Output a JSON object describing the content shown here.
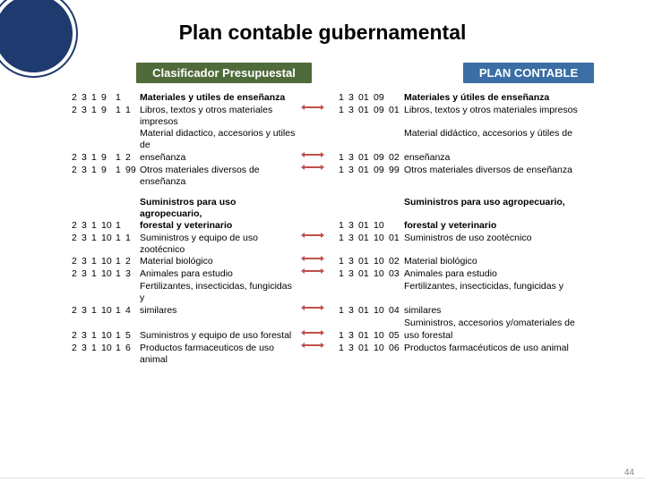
{
  "title": "Plan contable gubernamental",
  "banners": {
    "left": {
      "label": "Clasificador Presupuestal",
      "bg": "#4f6b3a"
    },
    "right": {
      "label": "PLAN CONTABLE",
      "bg": "#3a6ea5"
    }
  },
  "groups": [
    {
      "rows": [
        {
          "cl": [
            "2",
            "3",
            "1",
            "9",
            "1",
            "",
            ""
          ],
          "dl": "Materiales y utiles de enseñanza",
          "dlBold": true,
          "arrow": false,
          "cr": [
            "1",
            "3",
            "01",
            "09",
            "",
            ""
          ],
          "dr": "Materiales y útiles de enseñanza",
          "drBold": true
        },
        {
          "cl": [
            "2",
            "3",
            "1",
            "9",
            "1",
            "1",
            ""
          ],
          "dl": "Libros, textos y otros materiales impresos",
          "arrow": true,
          "cr": [
            "1",
            "3",
            "01",
            "09",
            "01",
            ""
          ],
          "dr": "Libros, textos y otros materiales impresos"
        },
        {
          "cl": [
            "",
            "",
            "",
            "",
            "",
            "",
            ""
          ],
          "dl": "Material didactico, accesorios y utiles de",
          "arrow": false,
          "cr": [
            "",
            "",
            "",
            "",
            "",
            ""
          ],
          "dr": "Material didáctico, accesorios y útiles de"
        },
        {
          "cl": [
            "2",
            "3",
            "1",
            "9",
            "1",
            "2",
            ""
          ],
          "dl": "enseñanza",
          "arrow": true,
          "cr": [
            "1",
            "3",
            "01",
            "09",
            "02",
            ""
          ],
          "dr": "enseñanza"
        },
        {
          "cl": [
            "2",
            "3",
            "1",
            "9",
            "1",
            "99",
            ""
          ],
          "dl": "Otros materiales diversos de enseñanza",
          "arrow": true,
          "cr": [
            "1",
            "3",
            "01",
            "09",
            "99",
            ""
          ],
          "dr": "Otros materiales diversos de enseñanza"
        }
      ]
    },
    {
      "rows": [
        {
          "cl": [
            "",
            "",
            "",
            "",
            "",
            "",
            ""
          ],
          "dl": "Suministros para uso agropecuario,",
          "dlBold": true,
          "arrow": false,
          "cr": [
            "",
            "",
            "",
            "",
            "",
            ""
          ],
          "dr": "Suministros para uso agropecuario,",
          "drBold": true
        },
        {
          "cl": [
            "2",
            "3",
            "1",
            "10",
            "1",
            "",
            ""
          ],
          "dl": "forestal y veterinario",
          "dlBold": true,
          "arrow": false,
          "cr": [
            "1",
            "3",
            "01",
            "10",
            "",
            ""
          ],
          "dr": "forestal y veterinario",
          "drBold": true
        },
        {
          "cl": [
            "2",
            "3",
            "1",
            "10",
            "1",
            "1",
            ""
          ],
          "dl": "Suministros y equipo de uso zootécnico",
          "arrow": true,
          "cr": [
            "1",
            "3",
            "01",
            "10",
            "01",
            ""
          ],
          "dr": "Suministros de uso zootécnico"
        },
        {
          "cl": [
            "2",
            "3",
            "1",
            "10",
            "1",
            "2",
            ""
          ],
          "dl": "Material biológico",
          "arrow": true,
          "cr": [
            "1",
            "3",
            "01",
            "10",
            "02",
            ""
          ],
          "dr": "Material biológico"
        },
        {
          "cl": [
            "2",
            "3",
            "1",
            "10",
            "1",
            "3",
            ""
          ],
          "dl": "Animales para estudio",
          "arrow": true,
          "cr": [
            "1",
            "3",
            "01",
            "10",
            "03",
            ""
          ],
          "dr": "Animales para estudio"
        },
        {
          "cl": [
            "",
            "",
            "",
            "",
            "",
            "",
            ""
          ],
          "dl": "Fertilizantes, insecticidas, fungicidas y",
          "arrow": false,
          "cr": [
            "",
            "",
            "",
            "",
            "",
            ""
          ],
          "dr": "Fertilizantes, insecticidas, fungicidas y"
        },
        {
          "cl": [
            "2",
            "3",
            "1",
            "10",
            "1",
            "4",
            ""
          ],
          "dl": "similares",
          "arrow": true,
          "cr": [
            "1",
            "3",
            "01",
            "10",
            "04",
            ""
          ],
          "dr": "similares"
        },
        {
          "cl": [
            "",
            "",
            "",
            "",
            "",
            "",
            ""
          ],
          "dl": "",
          "arrow": false,
          "cr": [
            "",
            "",
            "",
            "",
            "",
            ""
          ],
          "dr": "Suministros, accesorios y/omateriales de"
        },
        {
          "cl": [
            "2",
            "3",
            "1",
            "10",
            "1",
            "5",
            ""
          ],
          "dl": "Suministros y equipo de uso forestal",
          "arrow": true,
          "cr": [
            "1",
            "3",
            "01",
            "10",
            "05",
            ""
          ],
          "dr": "uso forestal"
        },
        {
          "cl": [
            "2",
            "3",
            "1",
            "10",
            "1",
            "6",
            ""
          ],
          "dl": "Productos farmaceuticos de uso animal",
          "arrow": true,
          "cr": [
            "1",
            "3",
            "01",
            "10",
            "06",
            ""
          ],
          "dr": "Productos farmacéuticos de uso animal"
        }
      ]
    }
  ],
  "pageNumber": "44"
}
